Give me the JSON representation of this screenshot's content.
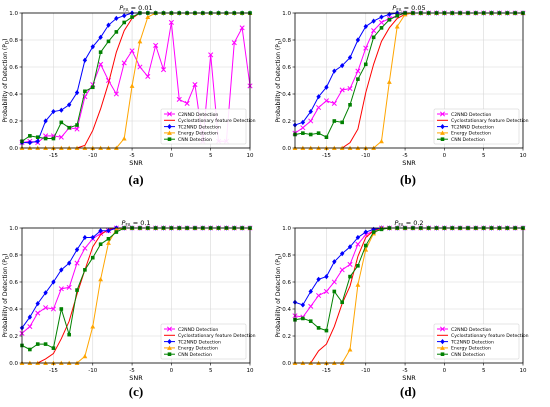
{
  "chart_data": [
    {
      "id": "a",
      "type": "line",
      "caption": "(a)",
      "title": "P_FA = 0.01",
      "title_main": "P",
      "title_sub": "FA",
      "title_tail": " = 0.01",
      "xlabel": "SNR",
      "ylabel": "Probability of Detection (P_D)",
      "ylabel_main": "Probability of Detection (P",
      "ylabel_sub": "D",
      "ylabel_tail": ")",
      "xlim": [
        -19,
        10
      ],
      "ylim": [
        0,
        1
      ],
      "xticks": [
        "-15",
        "-10",
        "-5",
        "0",
        "5",
        "10"
      ],
      "yticks": [
        "0.0",
        "0.2",
        "0.4",
        "0.6",
        "0.8",
        "1.0"
      ],
      "grid": true,
      "legend_position": "bottom-right",
      "x": [
        -19,
        -18,
        -17,
        -16,
        -15,
        -14,
        -13,
        -12,
        -11,
        -10,
        -9,
        -8,
        -7,
        -6,
        -5,
        -4,
        -3,
        -2,
        -1,
        0,
        1,
        2,
        3,
        4,
        5,
        6,
        7,
        8,
        9,
        10
      ],
      "series": [
        {
          "name": "C2NND Detection",
          "color": "#ff00ff",
          "marker": "x",
          "values": [
            0.04,
            0.05,
            0.04,
            0.09,
            0.09,
            0.08,
            0.15,
            0.14,
            0.38,
            0.47,
            0.62,
            0.5,
            0.4,
            0.63,
            0.72,
            0.6,
            0.53,
            0.76,
            0.58,
            0.93,
            0.36,
            0.33,
            0.47,
            0.05,
            0.69,
            0.05,
            0.05,
            0.78,
            0.89,
            0.46
          ]
        },
        {
          "name": "Cyclostationary feature Detection",
          "color": "#ff0000",
          "marker": "none",
          "values": [
            0,
            0,
            0,
            0,
            0,
            0,
            0,
            0,
            0.02,
            0.13,
            0.29,
            0.48,
            0.71,
            0.87,
            0.96,
            1,
            1,
            1,
            1,
            1,
            1,
            1,
            1,
            1,
            1,
            1,
            1,
            1,
            1,
            1
          ]
        },
        {
          "name": "TC2NND Detection",
          "color": "#0000ff",
          "marker": "diamond",
          "values": [
            0.04,
            0.04,
            0.05,
            0.2,
            0.27,
            0.28,
            0.32,
            0.41,
            0.65,
            0.75,
            0.82,
            0.91,
            0.96,
            0.98,
            1,
            1,
            1,
            1,
            1,
            1,
            1,
            1,
            1,
            1,
            1,
            1,
            1,
            1,
            1,
            1
          ]
        },
        {
          "name": "Energy Detection",
          "color": "#ffa500",
          "marker": "triangle",
          "values": [
            0,
            0,
            0,
            0,
            0,
            0,
            0,
            0,
            0,
            0,
            0,
            0,
            0,
            0.07,
            0.46,
            0.79,
            0.97,
            1,
            1,
            1,
            1,
            1,
            1,
            1,
            1,
            1,
            1,
            1,
            1,
            1
          ]
        },
        {
          "name": "CNN Detection",
          "color": "#008000",
          "marker": "square",
          "values": [
            0.05,
            0.09,
            0.08,
            0.07,
            0.07,
            0.19,
            0.15,
            0.17,
            0.42,
            0.45,
            0.71,
            0.79,
            0.86,
            0.93,
            0.97,
            1,
            1,
            1,
            1,
            1,
            1,
            1,
            1,
            1,
            1,
            1,
            1,
            1,
            1,
            1
          ]
        }
      ]
    },
    {
      "id": "b",
      "type": "line",
      "caption": "(b)",
      "title": "P_FA = 0.05",
      "title_main": "P",
      "title_sub": "FA",
      "title_tail": " = 0.05",
      "xlabel": "SNR",
      "ylabel": "Probability of Detection (P_D)",
      "ylabel_main": "Probability of Detection (P",
      "ylabel_sub": "D",
      "ylabel_tail": ")",
      "xlim": [
        -19,
        10
      ],
      "ylim": [
        0,
        1
      ],
      "xticks": [
        "-15",
        "-10",
        "-5",
        "0",
        "5",
        "10"
      ],
      "yticks": [
        "0.0",
        "0.2",
        "0.4",
        "0.6",
        "0.8",
        "1.0"
      ],
      "grid": true,
      "legend_position": "bottom-right",
      "x": [
        -19,
        -18,
        -17,
        -16,
        -15,
        -14,
        -13,
        -12,
        -11,
        -10,
        -9,
        -8,
        -7,
        -6,
        -5,
        -4,
        -3,
        -2,
        -1,
        0,
        1,
        2,
        3,
        4,
        5,
        6,
        7,
        8,
        9,
        10
      ],
      "series": [
        {
          "name": "C2NND Detection",
          "color": "#ff00ff",
          "marker": "x",
          "values": [
            0.11,
            0.15,
            0.2,
            0.3,
            0.35,
            0.33,
            0.43,
            0.44,
            0.57,
            0.74,
            0.87,
            0.93,
            0.96,
            0.98,
            1,
            1,
            1,
            1,
            1,
            1,
            1,
            1,
            1,
            1,
            1,
            1,
            1,
            1,
            1,
            1
          ]
        },
        {
          "name": "Cyclostationary feature Detection",
          "color": "#ff0000",
          "marker": "none",
          "values": [
            0,
            0,
            0,
            0,
            0,
            0,
            0,
            0.04,
            0.14,
            0.41,
            0.62,
            0.79,
            0.89,
            0.96,
            0.99,
            1,
            1,
            1,
            1,
            1,
            1,
            1,
            1,
            1,
            1,
            1,
            1,
            1,
            1,
            1
          ]
        },
        {
          "name": "TC2NND Detection",
          "color": "#0000ff",
          "marker": "diamond",
          "values": [
            0.17,
            0.19,
            0.27,
            0.38,
            0.45,
            0.57,
            0.61,
            0.67,
            0.8,
            0.9,
            0.94,
            0.97,
            0.99,
            1,
            1,
            1,
            1,
            1,
            1,
            1,
            1,
            1,
            1,
            1,
            1,
            1,
            1,
            1,
            1,
            1
          ]
        },
        {
          "name": "Energy Detection",
          "color": "#ffa500",
          "marker": "triangle",
          "values": [
            0,
            0,
            0,
            0,
            0,
            0,
            0,
            0,
            0,
            0,
            0,
            0.05,
            0.49,
            0.9,
            0.99,
            1,
            1,
            1,
            1,
            1,
            1,
            1,
            1,
            1,
            1,
            1,
            1,
            1,
            1,
            1
          ]
        },
        {
          "name": "CNN Detection",
          "color": "#008000",
          "marker": "square",
          "values": [
            0.1,
            0.11,
            0.1,
            0.11,
            0.08,
            0.2,
            0.19,
            0.32,
            0.51,
            0.62,
            0.82,
            0.89,
            0.95,
            0.98,
            1,
            1,
            1,
            1,
            1,
            1,
            1,
            1,
            1,
            1,
            1,
            1,
            1,
            1,
            1,
            1
          ]
        }
      ]
    },
    {
      "id": "c",
      "type": "line",
      "caption": "(c)",
      "title": "P_FA = 0.1",
      "title_main": "P",
      "title_sub": "FA",
      "title_tail": " = 0.1",
      "xlabel": "SNR",
      "ylabel": "Probability of Detection (P_D)",
      "ylabel_main": "Probability of Detection (P",
      "ylabel_sub": "D",
      "ylabel_tail": ")",
      "xlim": [
        -19,
        10
      ],
      "ylim": [
        0,
        1
      ],
      "xticks": [
        "-15",
        "-10",
        "-5",
        "0",
        "5",
        "10"
      ],
      "yticks": [
        "0.0",
        "0.2",
        "0.4",
        "0.6",
        "0.8",
        "1.0"
      ],
      "grid": true,
      "legend_position": "bottom-right",
      "x": [
        -19,
        -18,
        -17,
        -16,
        -15,
        -14,
        -13,
        -12,
        -11,
        -10,
        -9,
        -8,
        -7,
        -6,
        -5,
        -4,
        -3,
        -2,
        -1,
        0,
        1,
        2,
        3,
        4,
        5,
        6,
        7,
        8,
        9,
        10
      ],
      "series": [
        {
          "name": "C2NND Detection",
          "color": "#ff00ff",
          "marker": "x",
          "values": [
            0.22,
            0.27,
            0.37,
            0.41,
            0.4,
            0.55,
            0.56,
            0.74,
            0.85,
            0.92,
            0.96,
            0.98,
            1,
            1,
            1,
            1,
            1,
            1,
            1,
            1,
            1,
            1,
            1,
            1,
            1,
            1,
            1,
            1,
            1,
            1
          ]
        },
        {
          "name": "Cyclostationary feature Detection",
          "color": "#ff0000",
          "marker": "none",
          "values": [
            0,
            0,
            0,
            0.03,
            0.07,
            0.18,
            0.31,
            0.51,
            0.69,
            0.86,
            0.95,
            0.99,
            1,
            1,
            1,
            1,
            1,
            1,
            1,
            1,
            1,
            1,
            1,
            1,
            1,
            1,
            1,
            1,
            1,
            1
          ]
        },
        {
          "name": "TC2NND Detection",
          "color": "#0000ff",
          "marker": "diamond",
          "values": [
            0.26,
            0.34,
            0.44,
            0.52,
            0.6,
            0.69,
            0.74,
            0.84,
            0.93,
            0.93,
            0.98,
            0.98,
            1,
            1,
            1,
            1,
            1,
            1,
            1,
            1,
            1,
            1,
            1,
            1,
            1,
            1,
            1,
            1,
            1,
            1
          ]
        },
        {
          "name": "Energy Detection",
          "color": "#ffa500",
          "marker": "triangle",
          "values": [
            0,
            0,
            0,
            0,
            0,
            0,
            0,
            0,
            0.05,
            0.27,
            0.62,
            0.89,
            0.99,
            1,
            1,
            1,
            1,
            1,
            1,
            1,
            1,
            1,
            1,
            1,
            1,
            1,
            1,
            1,
            1,
            1
          ]
        },
        {
          "name": "CNN Detection",
          "color": "#008000",
          "marker": "square",
          "values": [
            0.13,
            0.1,
            0.14,
            0.14,
            0.11,
            0.4,
            0.21,
            0.54,
            0.69,
            0.78,
            0.88,
            0.92,
            0.97,
            1,
            1,
            1,
            1,
            1,
            1,
            1,
            1,
            1,
            1,
            1,
            1,
            1,
            1,
            1,
            1,
            1
          ]
        }
      ]
    },
    {
      "id": "d",
      "type": "line",
      "caption": "(d)",
      "title": "P_FA = 0.2",
      "title_main": "P",
      "title_sub": "FA",
      "title_tail": " = 0.2",
      "xlabel": "SNR",
      "ylabel": "Probability of Detection (P_D)",
      "ylabel_main": "Probability of Detection (P",
      "ylabel_sub": "D",
      "ylabel_tail": ")",
      "xlim": [
        -19,
        10
      ],
      "ylim": [
        0,
        1
      ],
      "xticks": [
        "-15",
        "-10",
        "-5",
        "0",
        "5",
        "10"
      ],
      "yticks": [
        "0.0",
        "0.2",
        "0.4",
        "0.6",
        "0.8",
        "1.0"
      ],
      "grid": true,
      "legend_position": "bottom-right",
      "x": [
        -19,
        -18,
        -17,
        -16,
        -15,
        -14,
        -13,
        -12,
        -11,
        -10,
        -9,
        -8,
        -7,
        -6,
        -5,
        -4,
        -3,
        -2,
        -1,
        0,
        1,
        2,
        3,
        4,
        5,
        6,
        7,
        8,
        9,
        10
      ],
      "series": [
        {
          "name": "C2NND Detection",
          "color": "#ff00ff",
          "marker": "x",
          "values": [
            0.35,
            0.34,
            0.42,
            0.5,
            0.53,
            0.6,
            0.69,
            0.73,
            0.88,
            0.95,
            0.98,
            1,
            1,
            1,
            1,
            1,
            1,
            1,
            1,
            1,
            1,
            1,
            1,
            1,
            1,
            1,
            1,
            1,
            1,
            1
          ]
        },
        {
          "name": "Cyclostationary feature Detection",
          "color": "#ff0000",
          "marker": "none",
          "values": [
            0,
            0,
            0,
            0.09,
            0.14,
            0.27,
            0.44,
            0.57,
            0.79,
            0.93,
            0.98,
            1,
            1,
            1,
            1,
            1,
            1,
            1,
            1,
            1,
            1,
            1,
            1,
            1,
            1,
            1,
            1,
            1,
            1,
            1
          ]
        },
        {
          "name": "TC2NND Detection",
          "color": "#0000ff",
          "marker": "diamond",
          "values": [
            0.45,
            0.43,
            0.53,
            0.62,
            0.64,
            0.75,
            0.81,
            0.86,
            0.93,
            0.97,
            0.99,
            1,
            1,
            1,
            1,
            1,
            1,
            1,
            1,
            1,
            1,
            1,
            1,
            1,
            1,
            1,
            1,
            1,
            1,
            1
          ]
        },
        {
          "name": "Energy Detection",
          "color": "#ffa500",
          "marker": "triangle",
          "values": [
            0,
            0,
            0,
            0,
            0,
            0,
            0,
            0.1,
            0.58,
            0.84,
            0.96,
            1,
            1,
            1,
            1,
            1,
            1,
            1,
            1,
            1,
            1,
            1,
            1,
            1,
            1,
            1,
            1,
            1,
            1,
            1
          ]
        },
        {
          "name": "CNN Detection",
          "color": "#008000",
          "marker": "square",
          "values": [
            0.32,
            0.33,
            0.31,
            0.26,
            0.24,
            0.53,
            0.45,
            0.64,
            0.72,
            0.87,
            0.97,
            0.99,
            1,
            1,
            1,
            1,
            1,
            1,
            1,
            1,
            1,
            1,
            1,
            1,
            1,
            1,
            1,
            1,
            1,
            1
          ]
        }
      ]
    }
  ]
}
